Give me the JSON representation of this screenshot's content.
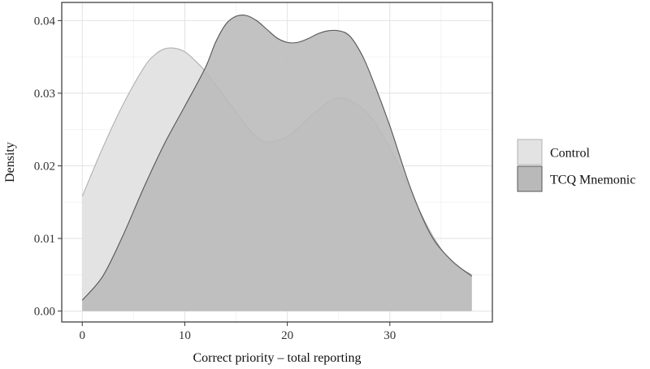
{
  "chart_data": {
    "type": "area",
    "title": "",
    "xlabel": "Correct priority – total reporting",
    "ylabel": "Density",
    "xlim": [
      -2,
      40
    ],
    "ylim": [
      -0.0015,
      0.0425
    ],
    "x_ticks": [
      0,
      10,
      20,
      30
    ],
    "x_tick_labels": [
      "0",
      "10",
      "20",
      "30"
    ],
    "y_ticks": [
      0,
      0.01,
      0.02,
      0.03,
      0.04
    ],
    "y_tick_labels": [
      "0.00",
      "0.01",
      "0.02",
      "0.03",
      "0.04"
    ],
    "grid": true,
    "legend_position": "right",
    "series": [
      {
        "name": "Control",
        "fill": "#e3e3e3",
        "stroke": "#b0b0b0",
        "x": [
          0,
          2,
          4,
          6,
          7,
          8,
          9,
          10,
          11,
          12,
          14,
          16,
          17,
          18,
          20,
          22,
          24,
          25,
          26,
          28,
          30,
          32,
          34,
          36,
          38
        ],
        "y": [
          0.0158,
          0.0225,
          0.0285,
          0.0335,
          0.0352,
          0.0361,
          0.0362,
          0.0357,
          0.0345,
          0.033,
          0.0293,
          0.0255,
          0.024,
          0.0233,
          0.024,
          0.0265,
          0.0288,
          0.0293,
          0.0291,
          0.027,
          0.0225,
          0.0165,
          0.0108,
          0.0068,
          0.005
        ]
      },
      {
        "name": "TCQ Mnemonic",
        "fill": "#b9b9b9",
        "stroke": "#555555",
        "x": [
          0,
          2,
          4,
          6,
          8,
          10,
          12,
          13,
          14,
          15,
          16,
          17,
          18,
          19,
          20,
          21,
          22,
          23,
          24,
          25,
          26,
          27,
          28,
          30,
          32,
          34,
          36,
          38
        ],
        "y": [
          0.0015,
          0.0048,
          0.0105,
          0.017,
          0.023,
          0.0282,
          0.0335,
          0.037,
          0.0395,
          0.0406,
          0.0407,
          0.04,
          0.0388,
          0.0376,
          0.037,
          0.037,
          0.0375,
          0.0382,
          0.0386,
          0.0386,
          0.038,
          0.036,
          0.033,
          0.0255,
          0.017,
          0.0105,
          0.007,
          0.0048
        ]
      }
    ]
  }
}
